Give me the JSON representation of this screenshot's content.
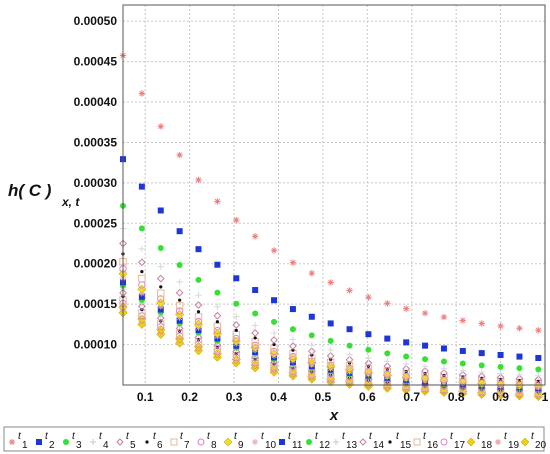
{
  "chart_data": {
    "type": "scatter",
    "title": "",
    "xlabel": "x",
    "ylabel": {
      "main": "h( C )",
      "sub": "x, t"
    },
    "xlim": [
      0.05,
      1.0
    ],
    "ylim": [
      5e-05,
      0.00052
    ],
    "x_ticks": [
      "0.1",
      "0.2",
      "0.3",
      "0.4",
      "0.5",
      "0.6",
      "0.7",
      "0.8",
      "0.9",
      "1"
    ],
    "y_ticks": [
      "0.00010",
      "0.00015",
      "0.00020",
      "0.00025",
      "0.00030",
      "0.00035",
      "0.00040",
      "0.00045",
      "0.00050"
    ],
    "grid": true,
    "legend_position": "bottom",
    "x": [
      0.05,
      0.0925,
      0.135,
      0.1775,
      0.22,
      0.2625,
      0.305,
      0.3475,
      0.39,
      0.4325,
      0.475,
      0.5175,
      0.56,
      0.6025,
      0.645,
      0.6875,
      0.73,
      0.7725,
      0.815,
      0.8575,
      0.9,
      0.9425,
      0.985
    ],
    "series": [
      {
        "name": "t",
        "sub": "1",
        "marker": "star",
        "color": "#f08080",
        "a": 0.000102,
        "b": 0.00042
      },
      {
        "name": "t",
        "sub": "2",
        "marker": "square",
        "color": "#1f35d6",
        "a": 7.2e-05,
        "b": 0.000304
      },
      {
        "name": "t",
        "sub": "3",
        "marker": "circle",
        "color": "#33e033",
        "a": 6e-05,
        "b": 0.00025
      },
      {
        "name": "t",
        "sub": "4",
        "marker": "plus",
        "color": "#d8d8d8",
        "a": 5.3e-05,
        "b": 0.000225
      },
      {
        "name": "t",
        "sub": "5",
        "marker": "diamond-open",
        "color": "#c97f9f",
        "a": 4.9e-05,
        "b": 0.000208
      },
      {
        "name": "t",
        "sub": "6",
        "marker": "dot",
        "color": "#111111",
        "a": 4.7e-05,
        "b": 0.000195
      },
      {
        "name": "t",
        "sub": "7",
        "marker": "square-open",
        "color": "#e8b898",
        "a": 4.5e-05,
        "b": 0.000186
      },
      {
        "name": "t",
        "sub": "8",
        "marker": "circle-open",
        "color": "#e080c8",
        "a": 4.3e-05,
        "b": 0.000178
      },
      {
        "name": "t",
        "sub": "9",
        "marker": "diamond",
        "color": "#f0e020",
        "a": 4.2e-05,
        "b": 0.000172
      },
      {
        "name": "t",
        "sub": "10",
        "marker": "star",
        "color": "#f0b0b0",
        "a": 4.1e-05,
        "b": 0.000167
      },
      {
        "name": "t",
        "sub": "11",
        "marker": "square",
        "color": "#1f35d6",
        "a": 4e-05,
        "b": 0.000162
      },
      {
        "name": "t",
        "sub": "12",
        "marker": "circle",
        "color": "#33e033",
        "a": 3.9e-05,
        "b": 0.000158
      },
      {
        "name": "t",
        "sub": "13",
        "marker": "plus",
        "color": "#d0d0d0",
        "a": 3.8e-05,
        "b": 0.000154
      },
      {
        "name": "t",
        "sub": "14",
        "marker": "diamond-open",
        "color": "#c97f9f",
        "a": 3.7e-05,
        "b": 0.00015
      },
      {
        "name": "t",
        "sub": "15",
        "marker": "dot",
        "color": "#111111",
        "a": 3.6e-05,
        "b": 0.000146
      },
      {
        "name": "t",
        "sub": "16",
        "marker": "square-open",
        "color": "#e8b898",
        "a": 3.5e-05,
        "b": 0.000142
      },
      {
        "name": "t",
        "sub": "17",
        "marker": "circle-open",
        "color": "#e080c8",
        "a": 3.4e-05,
        "b": 0.000138
      },
      {
        "name": "t",
        "sub": "18",
        "marker": "diamond",
        "color": "#f0d010",
        "a": 3.3e-05,
        "b": 0.000134
      },
      {
        "name": "t",
        "sub": "19",
        "marker": "star",
        "color": "#f0a0a0",
        "a": 3.2e-05,
        "b": 0.000131
      },
      {
        "name": "t",
        "sub": "20",
        "marker": "diamond",
        "color": "#f0d010",
        "a": 3.1e-05,
        "b": 0.000128
      }
    ],
    "legend_labels": [
      {
        "text": "t",
        "sub": "1"
      },
      {
        "text": "t",
        "sub": "2"
      },
      {
        "text": "t",
        "sub": "3"
      },
      {
        "text": "t",
        "sub": "4"
      },
      {
        "text": "t",
        "sub": "5"
      },
      {
        "text": "t",
        "sub": "6"
      },
      {
        "text": "t",
        "sub": "7"
      },
      {
        "text": "t",
        "sub": "8"
      },
      {
        "text": "t",
        "sub": "9"
      },
      {
        "text": "t",
        "sub": "10"
      },
      {
        "text": "t",
        "sub": "11"
      },
      {
        "text": "t",
        "sub": "12"
      },
      {
        "text": "t",
        "sub": "13"
      },
      {
        "text": "t",
        "sub": "14"
      },
      {
        "text": "t",
        "sub": "15"
      },
      {
        "text": "t",
        "sub": "16"
      },
      {
        "text": "t",
        "sub": "17"
      },
      {
        "text": "t",
        "sub": "18"
      },
      {
        "text": "t",
        "sub": "19"
      },
      {
        "text": "t",
        "sub": "20"
      }
    ],
    "legend_markers": [
      "star",
      "square",
      "circle",
      "plus",
      "diamond-open",
      "dot",
      "square-open",
      "circle-open",
      "diamond",
      "star",
      "square",
      "circle",
      "plus",
      "diamond-open",
      "dot",
      "square-open",
      "circle-open",
      "diamond",
      "star",
      "diamond"
    ],
    "legend_colors": [
      "#f08080",
      "#1f35d6",
      "#33e033",
      "#c8c8c8",
      "#c97f9f",
      "#111111",
      "#e8b898",
      "#e080c8",
      "#f0e020",
      "#f0b0b0",
      "#1f35d6",
      "#33e033",
      "#c8c8c8",
      "#c97f9f",
      "#111111",
      "#e8b898",
      "#e080c8",
      "#f0d010",
      "#f0a0a0",
      "#f0d010"
    ]
  }
}
